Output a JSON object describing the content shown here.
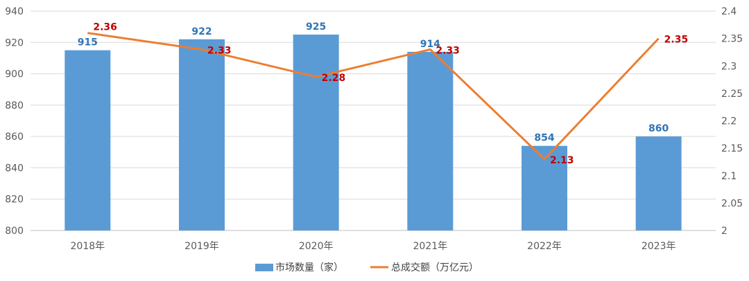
{
  "chart_data": {
    "type": "bar",
    "categories": [
      "2018年",
      "2019年",
      "2020年",
      "2021年",
      "2022年",
      "2023年"
    ],
    "series": [
      {
        "name": "市场数量（家）",
        "type": "bar",
        "axis": "left",
        "values": [
          915,
          922,
          925,
          914,
          854,
          860
        ],
        "labels": [
          "915",
          "922",
          "925",
          "914",
          "854",
          "860"
        ]
      },
      {
        "name": "总成交额（万亿元）",
        "type": "line",
        "axis": "right",
        "values": [
          2.36,
          2.33,
          2.28,
          2.33,
          2.13,
          2.35
        ],
        "labels": [
          "2.36",
          "2.33",
          "2.28",
          "2.33",
          "2.13",
          "2.35"
        ]
      }
    ],
    "y_left": {
      "ylim": [
        800,
        940
      ],
      "ticks": [
        "800",
        "820",
        "840",
        "860",
        "880",
        "900",
        "920",
        "940"
      ]
    },
    "y_right": {
      "ylim": [
        2,
        2.4
      ],
      "ticks": [
        "2",
        "2.05",
        "2.1",
        "2.15",
        "2.2",
        "2.25",
        "2.3",
        "2.35",
        "2.4"
      ]
    },
    "grid": true,
    "legend": "bottom-center",
    "colors": {
      "bar": "#5B9BD5",
      "line": "#ED7D31",
      "bar_label": "#2E75B6",
      "line_label": "#C00000"
    }
  }
}
